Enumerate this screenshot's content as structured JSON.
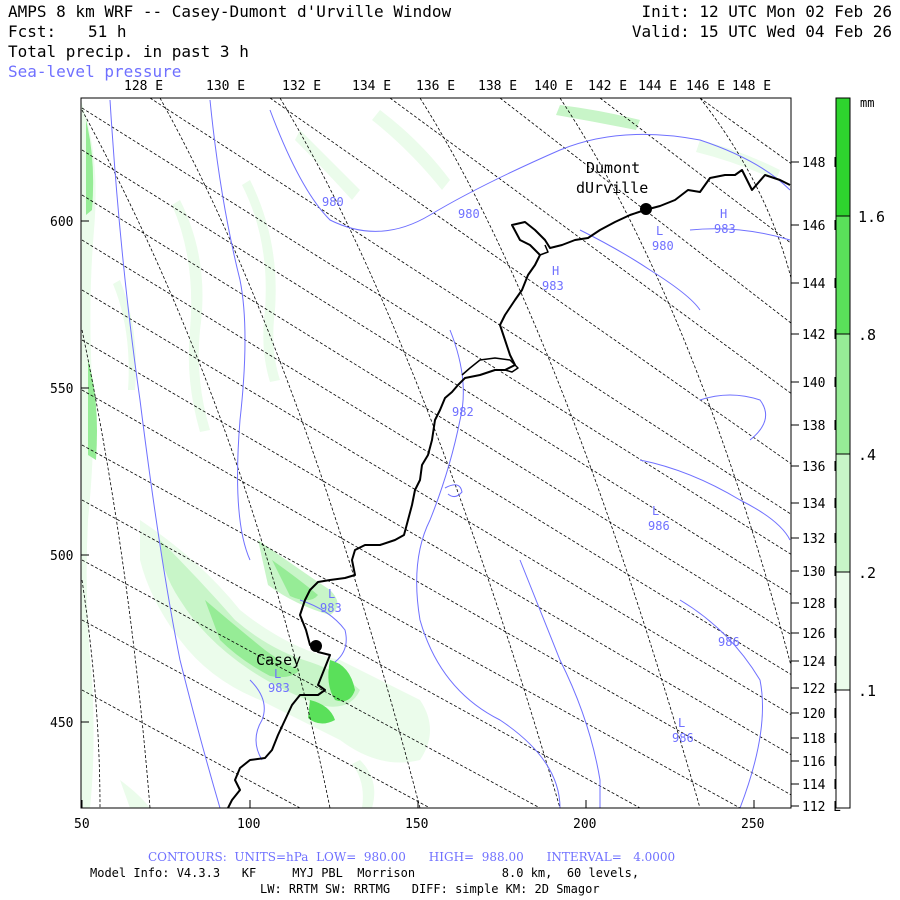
{
  "header": {
    "title": "AMPS 8 km WRF -- Casey-Dumont d'Urville Window",
    "forecast_label": "Fcst:",
    "forecast_hours": "51 h",
    "field": "Total precip. in past 3 h",
    "overlay": "Sea-level pressure",
    "init": "Init: 12 UTC Mon 02 Feb 26",
    "valid": "Valid: 15 UTC Wed 04 Feb 26"
  },
  "grid": {
    "x_ticks": [
      "50",
      "100",
      "150",
      "200",
      "250"
    ],
    "y_ticks": [
      "450",
      "500",
      "550",
      "600"
    ],
    "top_lon": [
      "128 E",
      "130 E",
      "132 E",
      "134 E",
      "136 E",
      "138 E",
      "140 E",
      "142 E",
      "144 E",
      "146 E",
      "148 E"
    ],
    "right_lon": [
      "148 E",
      "146 E",
      "144 E",
      "142 E",
      "140 E",
      "138 E",
      "136 E",
      "134 E",
      "132 E",
      "130 E",
      "128 E",
      "126 E",
      "124 E",
      "122 E",
      "120 E",
      "118 E",
      "116 E",
      "114 E",
      "112 E"
    ]
  },
  "legend": {
    "unit": "mm",
    "ticks": [
      "1.6",
      ".8",
      ".4",
      ".2",
      ".1"
    ],
    "colors": [
      "#ffffff",
      "#ebfceb",
      "#c8f5c8",
      "#96ec96",
      "#5ae05a",
      "#2ed42e"
    ]
  },
  "stations": [
    "Casey",
    "Dumont",
    "dUrville"
  ],
  "pressure_labels": [
    "980",
    "980",
    "980",
    "983",
    "983",
    "982",
    "986",
    "986",
    "986",
    "983",
    "983"
  ],
  "pressure_centers": [
    "H",
    "H",
    "L",
    "L",
    "L",
    "L",
    "L"
  ],
  "footer": {
    "contours": "CONTOURS:  UNITS=hPa  LOW=  980.00      HIGH=  988.00      INTERVAL=   4.0000",
    "model": "Model Info: V4.3.3   KF     MYJ PBL  Morrison            8.0 km,  60 levels,",
    "physics": "LW: RRTM SW: RRTMG   DIFF: simple KM: 2D Smagor"
  }
}
